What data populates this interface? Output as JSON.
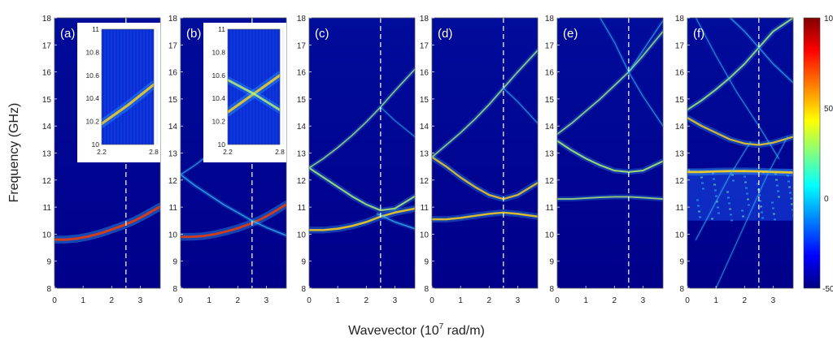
{
  "figure": {
    "ylabel": "Frequency (GHz)",
    "xlabel_main": "Wavevector (10",
    "xlabel_sup": "7",
    "xlabel_end": " rad/m)",
    "colorbar_ticks": [
      "100",
      "50",
      "0",
      "-50"
    ]
  },
  "colors": {
    "background": "#00007f",
    "mode_low": "#3cc4ff",
    "mode_mid": "#c6ff6a",
    "mode_high": "#ffd21c",
    "mode_max": "#e23b12",
    "marker_line": "#ffffff",
    "colormap": [
      "#000080",
      "#0000ff",
      "#00ffff",
      "#ffff00",
      "#ff0000",
      "#800000"
    ]
  },
  "chart_data": [
    {
      "type": "heatmap",
      "panel": "(a)",
      "xlim": [
        0,
        3.7
      ],
      "ylim": [
        8,
        18
      ],
      "xticks": [
        "0",
        "1",
        "2",
        "3"
      ],
      "yticks": [
        "8",
        "9",
        "10",
        "11",
        "12",
        "13",
        "14",
        "15",
        "16",
        "17",
        "18"
      ],
      "marker_x": 2.5,
      "series": [
        {
          "x": [
            0,
            0.4,
            0.8,
            1.2,
            1.6,
            2.0,
            2.4,
            2.8,
            3.2,
            3.7
          ],
          "y": [
            9.8,
            9.8,
            9.84,
            9.92,
            10.03,
            10.17,
            10.32,
            10.5,
            10.72,
            11.02
          ],
          "intensity": 95
        }
      ],
      "inset": {
        "xlim": [
          2.2,
          2.8
        ],
        "ylim": [
          10,
          11
        ],
        "xticks": [
          "2.2",
          "2.8"
        ],
        "yticks": [
          "10",
          "10.2",
          "10.4",
          "10.6",
          "10.8",
          "11"
        ],
        "series": [
          {
            "x": [
              2.2,
              2.5,
              2.8
            ],
            "y": [
              10.18,
              10.34,
              10.52
            ],
            "intensity": 70
          }
        ]
      }
    },
    {
      "type": "heatmap",
      "panel": "(b)",
      "xlim": [
        0,
        3.7
      ],
      "ylim": [
        8,
        18
      ],
      "xticks": [
        "0",
        "1",
        "2",
        "3"
      ],
      "yticks": [
        "8",
        "9",
        "10",
        "11",
        "12",
        "13",
        "14",
        "15",
        "16",
        "17",
        "18"
      ],
      "marker_x": 2.5,
      "series": [
        {
          "x": [
            0,
            0.4,
            0.8,
            1.2,
            1.6,
            2.0,
            2.4,
            2.8,
            3.2,
            3.7
          ],
          "y": [
            9.9,
            9.9,
            9.93,
            10.0,
            10.1,
            10.22,
            10.37,
            10.55,
            10.78,
            11.1
          ],
          "intensity": 90
        },
        {
          "x": [
            0,
            0.5,
            1.0,
            1.5,
            2.0,
            2.5,
            3.0,
            3.7
          ],
          "y": [
            12.2,
            11.8,
            11.45,
            11.1,
            10.8,
            10.5,
            10.25,
            9.95
          ],
          "intensity": 30
        },
        {
          "x": [
            0,
            0.5,
            1.0,
            1.5,
            2.0,
            2.5,
            3.0,
            3.7
          ],
          "y": [
            12.2,
            12.55,
            12.95,
            13.4,
            13.9,
            14.45,
            15.05,
            15.9
          ],
          "intensity": 15
        }
      ],
      "inset": {
        "xlim": [
          2.2,
          2.8
        ],
        "ylim": [
          10,
          11
        ],
        "xticks": [
          "2.2",
          "2.8"
        ],
        "yticks": [
          "10",
          "10.2",
          "10.4",
          "10.6",
          "10.8",
          "11"
        ],
        "series": [
          {
            "x": [
              2.2,
              2.5,
              2.8
            ],
            "y": [
              10.28,
              10.44,
              10.6
            ],
            "intensity": 70
          },
          {
            "x": [
              2.2,
              2.5,
              2.8
            ],
            "y": [
              10.56,
              10.44,
              10.3
            ],
            "intensity": 55
          }
        ]
      }
    },
    {
      "type": "heatmap",
      "panel": "(c)",
      "xlim": [
        0,
        3.7
      ],
      "ylim": [
        8,
        18
      ],
      "xticks": [
        "0",
        "1",
        "2",
        "3"
      ],
      "yticks": [
        "8",
        "9",
        "10",
        "11",
        "12",
        "13",
        "14",
        "15",
        "16",
        "17",
        "18"
      ],
      "marker_x": 2.5,
      "series": [
        {
          "x": [
            0,
            0.5,
            1.0,
            1.5,
            2.0,
            2.5,
            3.0,
            3.7
          ],
          "y": [
            10.15,
            10.15,
            10.2,
            10.3,
            10.45,
            10.65,
            10.8,
            10.95
          ],
          "intensity": 75
        },
        {
          "x": [
            0,
            0.5,
            1.0,
            1.5,
            2.0,
            2.5,
            3.0,
            3.7
          ],
          "y": [
            12.45,
            12.1,
            11.75,
            11.4,
            11.1,
            10.88,
            10.95,
            11.4
          ],
          "intensity": 55
        },
        {
          "x": [
            2.4,
            3.0,
            3.7
          ],
          "y": [
            10.75,
            10.45,
            10.2
          ],
          "intensity": 30
        },
        {
          "x": [
            0,
            0.5,
            1.0,
            1.5,
            2.0,
            2.5,
            3.0,
            3.7
          ],
          "y": [
            12.45,
            12.8,
            13.2,
            13.65,
            14.15,
            14.7,
            15.3,
            16.1
          ],
          "intensity": 35
        },
        {
          "x": [
            2.5,
            3.0,
            3.7
          ],
          "y": [
            14.7,
            14.2,
            13.6
          ],
          "intensity": 10
        }
      ]
    },
    {
      "type": "heatmap",
      "panel": "(d)",
      "xlim": [
        0,
        3.7
      ],
      "ylim": [
        8,
        18
      ],
      "xticks": [
        "0",
        "1",
        "2",
        "3"
      ],
      "yticks": [
        "8",
        "9",
        "10",
        "11",
        "12",
        "13",
        "14",
        "15",
        "16",
        "17",
        "18"
      ],
      "marker_x": 2.5,
      "series": [
        {
          "x": [
            0,
            0.5,
            1.0,
            1.5,
            2.0,
            2.5,
            3.0,
            3.7
          ],
          "y": [
            10.55,
            10.55,
            10.6,
            10.68,
            10.75,
            10.8,
            10.75,
            10.65
          ],
          "intensity": 70
        },
        {
          "x": [
            0,
            0.5,
            1.0,
            1.5,
            2.0,
            2.5,
            3.0,
            3.7
          ],
          "y": [
            12.85,
            12.5,
            12.1,
            11.75,
            11.45,
            11.3,
            11.45,
            11.9
          ],
          "intensity": 65
        },
        {
          "x": [
            0,
            0.5,
            1.0,
            1.5,
            2.0,
            2.5,
            3.0,
            3.7
          ],
          "y": [
            12.85,
            13.3,
            13.75,
            14.25,
            14.8,
            15.4,
            16.0,
            16.8
          ],
          "intensity": 40
        },
        {
          "x": [
            2.5,
            3.0,
            3.7
          ],
          "y": [
            15.4,
            14.9,
            14.1
          ],
          "intensity": 12
        }
      ]
    },
    {
      "type": "heatmap",
      "panel": "(e)",
      "xlim": [
        0,
        3.7
      ],
      "ylim": [
        8,
        18
      ],
      "xticks": [
        "0",
        "1",
        "2",
        "3"
      ],
      "yticks": [
        "8",
        "9",
        "10",
        "11",
        "12",
        "13",
        "14",
        "15",
        "16",
        "17",
        "18"
      ],
      "marker_x": 2.5,
      "series": [
        {
          "x": [
            0,
            0.5,
            1.0,
            1.5,
            2.0,
            2.5,
            3.0,
            3.7
          ],
          "y": [
            11.3,
            11.3,
            11.33,
            11.36,
            11.38,
            11.38,
            11.35,
            11.3
          ],
          "intensity": 45
        },
        {
          "x": [
            0,
            0.5,
            1.0,
            1.5,
            2.0,
            2.5,
            3.0,
            3.7
          ],
          "y": [
            13.45,
            13.1,
            12.8,
            12.55,
            12.35,
            12.3,
            12.35,
            12.7
          ],
          "intensity": 55
        },
        {
          "x": [
            0,
            0.5,
            1.0,
            1.5,
            2.0,
            2.5,
            3.0,
            3.7
          ],
          "y": [
            13.7,
            14.1,
            14.55,
            15.0,
            15.5,
            16.0,
            16.6,
            17.5
          ],
          "intensity": 40
        },
        {
          "x": [
            1.5,
            2.0,
            2.5,
            3.0,
            3.7
          ],
          "y": [
            18.0,
            17.1,
            16.0,
            15.1,
            14.0
          ],
          "intensity": 12
        },
        {
          "x": [
            2.5,
            3.0,
            3.7
          ],
          "y": [
            16.0,
            16.8,
            17.9
          ],
          "intensity": 12
        }
      ]
    },
    {
      "type": "heatmap",
      "panel": "(f)",
      "xlim": [
        0,
        3.7
      ],
      "ylim": [
        8,
        18
      ],
      "xticks": [
        "0",
        "1",
        "2",
        "3"
      ],
      "yticks": [
        "8",
        "9",
        "10",
        "11",
        "12",
        "13",
        "14",
        "15",
        "16",
        "17",
        "18"
      ],
      "marker_x": 2.5,
      "noise_band": [
        10.5,
        12.4
      ],
      "colorbar": {
        "min": -50,
        "max": 100
      },
      "series": [
        {
          "x": [
            0,
            0.5,
            1.0,
            1.5,
            2.0,
            2.5,
            3.0,
            3.7
          ],
          "y": [
            12.3,
            12.3,
            12.32,
            12.33,
            12.33,
            12.32,
            12.3,
            12.28
          ],
          "intensity": 85
        },
        {
          "x": [
            0,
            0.5,
            1.0,
            1.5,
            2.0,
            2.5,
            3.0,
            3.7
          ],
          "y": [
            14.3,
            14.0,
            13.75,
            13.5,
            13.35,
            13.3,
            13.38,
            13.6
          ],
          "intensity": 65
        },
        {
          "x": [
            0,
            0.5,
            1.0,
            1.5,
            2.0,
            2.5,
            3.0,
            3.7
          ],
          "y": [
            14.6,
            14.95,
            15.35,
            15.8,
            16.3,
            16.9,
            17.5,
            18.0
          ],
          "intensity": 50
        },
        {
          "x": [
            1.5,
            2.0,
            2.5,
            3.0,
            3.7
          ],
          "y": [
            18.0,
            17.5,
            16.9,
            16.3,
            15.6
          ],
          "intensity": 18
        },
        {
          "x": [
            0.3,
            1.0,
            1.7,
            2.5,
            3.2
          ],
          "y": [
            18.0,
            16.6,
            15.3,
            14.0,
            12.8
          ],
          "intensity": 8
        },
        {
          "x": [
            0.3,
            0.9,
            1.5,
            2.2
          ],
          "y": [
            9.8,
            11.0,
            12.2,
            13.4
          ],
          "intensity": 6
        },
        {
          "x": [
            1.0,
            1.6,
            2.2,
            2.8,
            3.5
          ],
          "y": [
            8.0,
            9.4,
            10.8,
            12.2,
            13.6
          ],
          "intensity": 5
        }
      ]
    }
  ]
}
